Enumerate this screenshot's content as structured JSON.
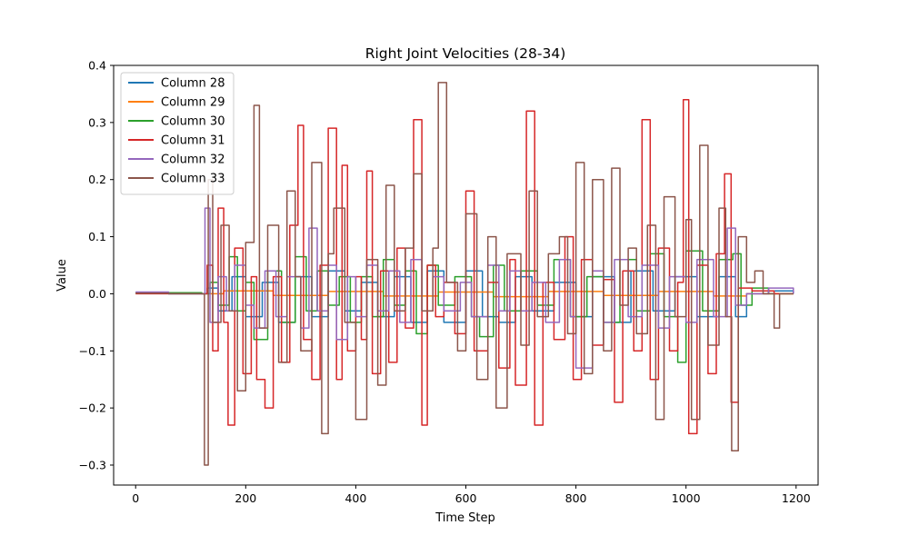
{
  "chart_data": {
    "type": "line",
    "title": "Right Joint Velocities (28-34)",
    "xlabel": "Time Step",
    "ylabel": "Value",
    "xlim": [
      -40,
      1240
    ],
    "ylim": [
      -0.335,
      0.4
    ],
    "xticks": [
      0,
      200,
      400,
      600,
      800,
      1000,
      1200
    ],
    "yticks": [
      -0.3,
      -0.2,
      -0.1,
      0.0,
      0.1,
      0.2,
      0.3,
      0.4
    ],
    "xtick_labels": [
      "0",
      "200",
      "400",
      "600",
      "800",
      "1000",
      "1200"
    ],
    "ytick_labels": [
      "−0.3",
      "−0.2",
      "−0.1",
      "0.0",
      "0.1",
      "0.2",
      "0.3",
      "0.4"
    ],
    "legend_position": "upper-left",
    "grid": false,
    "series": [
      {
        "name": "Column 28",
        "color": "#1f77b4",
        "points": [
          [
            0,
            0.002
          ],
          [
            60,
            0.0
          ],
          [
            120,
            0.0
          ],
          [
            130,
            0.01
          ],
          [
            150,
            -0.03
          ],
          [
            175,
            0.03
          ],
          [
            200,
            -0.04
          ],
          [
            230,
            0.02
          ],
          [
            260,
            -0.05
          ],
          [
            290,
            0.03
          ],
          [
            320,
            -0.04
          ],
          [
            350,
            0.04
          ],
          [
            380,
            -0.03
          ],
          [
            410,
            0.02
          ],
          [
            440,
            -0.04
          ],
          [
            470,
            0.03
          ],
          [
            500,
            -0.05
          ],
          [
            530,
            0.04
          ],
          [
            560,
            -0.05
          ],
          [
            600,
            0.04
          ],
          [
            630,
            -0.04
          ],
          [
            660,
            -0.05
          ],
          [
            690,
            0.03
          ],
          [
            720,
            -0.03
          ],
          [
            760,
            0.02
          ],
          [
            800,
            -0.04
          ],
          [
            830,
            0.03
          ],
          [
            870,
            -0.05
          ],
          [
            900,
            0.04
          ],
          [
            940,
            -0.03
          ],
          [
            980,
            0.03
          ],
          [
            1020,
            -0.04
          ],
          [
            1060,
            0.03
          ],
          [
            1090,
            -0.04
          ],
          [
            1110,
            0.0
          ],
          [
            1150,
            0.005
          ],
          [
            1195,
            0.0
          ]
        ]
      },
      {
        "name": "Column 29",
        "color": "#ff7f0e",
        "points": [
          [
            0,
            0.001
          ],
          [
            120,
            0.0
          ],
          [
            160,
            0.005
          ],
          [
            250,
            -0.003
          ],
          [
            350,
            0.004
          ],
          [
            450,
            -0.004
          ],
          [
            550,
            0.003
          ],
          [
            650,
            -0.005
          ],
          [
            750,
            0.004
          ],
          [
            850,
            -0.003
          ],
          [
            950,
            0.004
          ],
          [
            1050,
            -0.004
          ],
          [
            1110,
            0.0
          ],
          [
            1195,
            0.0
          ]
        ]
      },
      {
        "name": "Column 30",
        "color": "#2ca02c",
        "points": [
          [
            0,
            0.002
          ],
          [
            120,
            0.0
          ],
          [
            135,
            0.02
          ],
          [
            150,
            -0.02
          ],
          [
            170,
            0.065
          ],
          [
            185,
            -0.03
          ],
          [
            200,
            0.02
          ],
          [
            215,
            -0.08
          ],
          [
            240,
            0.04
          ],
          [
            265,
            -0.05
          ],
          [
            290,
            0.065
          ],
          [
            310,
            -0.03
          ],
          [
            330,
            0.04
          ],
          [
            350,
            -0.02
          ],
          [
            370,
            0.03
          ],
          [
            390,
            -0.05
          ],
          [
            410,
            0.03
          ],
          [
            430,
            -0.04
          ],
          [
            450,
            0.06
          ],
          [
            470,
            -0.02
          ],
          [
            490,
            0.04
          ],
          [
            510,
            -0.07
          ],
          [
            530,
            0.05
          ],
          [
            550,
            -0.02
          ],
          [
            580,
            0.03
          ],
          [
            610,
            -0.04
          ],
          [
            625,
            -0.075
          ],
          [
            650,
            0.05
          ],
          [
            670,
            -0.03
          ],
          [
            700,
            0.04
          ],
          [
            730,
            -0.02
          ],
          [
            760,
            0.06
          ],
          [
            790,
            -0.04
          ],
          [
            820,
            0.03
          ],
          [
            850,
            -0.05
          ],
          [
            880,
            0.06
          ],
          [
            910,
            -0.03
          ],
          [
            935,
            0.07
          ],
          [
            960,
            -0.04
          ],
          [
            985,
            -0.12
          ],
          [
            1000,
            0.075
          ],
          [
            1030,
            -0.03
          ],
          [
            1060,
            0.06
          ],
          [
            1085,
            0.07
          ],
          [
            1100,
            -0.02
          ],
          [
            1120,
            0.01
          ],
          [
            1150,
            0.0
          ],
          [
            1195,
            0.0
          ]
        ]
      },
      {
        "name": "Column 31",
        "color": "#d62728",
        "points": [
          [
            0,
            0.0
          ],
          [
            100,
            0.0
          ],
          [
            125,
            0.0
          ],
          [
            130,
            0.05
          ],
          [
            140,
            -0.1
          ],
          [
            150,
            0.15
          ],
          [
            160,
            -0.05
          ],
          [
            168,
            -0.23
          ],
          [
            180,
            0.08
          ],
          [
            195,
            -0.14
          ],
          [
            210,
            0.03
          ],
          [
            220,
            -0.15
          ],
          [
            235,
            -0.2
          ],
          [
            250,
            0.03
          ],
          [
            265,
            -0.12
          ],
          [
            280,
            0.12
          ],
          [
            295,
            0.295
          ],
          [
            305,
            -0.08
          ],
          [
            320,
            -0.15
          ],
          [
            335,
            0.05
          ],
          [
            350,
            0.29
          ],
          [
            365,
            -0.15
          ],
          [
            375,
            0.225
          ],
          [
            385,
            -0.1
          ],
          [
            400,
            0.03
          ],
          [
            410,
            -0.08
          ],
          [
            420,
            0.215
          ],
          [
            430,
            -0.14
          ],
          [
            445,
            0.04
          ],
          [
            460,
            -0.12
          ],
          [
            475,
            0.08
          ],
          [
            490,
            -0.06
          ],
          [
            505,
            0.305
          ],
          [
            520,
            -0.23
          ],
          [
            530,
            0.05
          ],
          [
            545,
            -0.04
          ],
          [
            560,
            0.02
          ],
          [
            580,
            -0.07
          ],
          [
            600,
            0.18
          ],
          [
            615,
            -0.1
          ],
          [
            640,
            0.02
          ],
          [
            660,
            -0.13
          ],
          [
            680,
            0.06
          ],
          [
            690,
            -0.16
          ],
          [
            710,
            0.32
          ],
          [
            725,
            -0.23
          ],
          [
            740,
            0.02
          ],
          [
            760,
            -0.08
          ],
          [
            780,
            0.1
          ],
          [
            795,
            -0.15
          ],
          [
            810,
            0.06
          ],
          [
            830,
            -0.09
          ],
          [
            850,
            0.025
          ],
          [
            870,
            -0.19
          ],
          [
            885,
            0.04
          ],
          [
            905,
            -0.1
          ],
          [
            920,
            0.305
          ],
          [
            935,
            -0.15
          ],
          [
            950,
            0.08
          ],
          [
            970,
            -0.1
          ],
          [
            985,
            0.02
          ],
          [
            995,
            0.34
          ],
          [
            1005,
            -0.245
          ],
          [
            1020,
            0.05
          ],
          [
            1040,
            -0.14
          ],
          [
            1055,
            0.07
          ],
          [
            1070,
            0.21
          ],
          [
            1082,
            -0.19
          ],
          [
            1095,
            0.01
          ],
          [
            1120,
            0.005
          ],
          [
            1160,
            0.0
          ],
          [
            1195,
            0.0
          ]
        ]
      },
      {
        "name": "Column 32",
        "color": "#9467bd",
        "points": [
          [
            0,
            0.003
          ],
          [
            60,
            0.0
          ],
          [
            120,
            0.0
          ],
          [
            126,
            0.15
          ],
          [
            135,
            -0.05
          ],
          [
            150,
            0.03
          ],
          [
            165,
            -0.03
          ],
          [
            180,
            0.05
          ],
          [
            200,
            -0.02
          ],
          [
            215,
            -0.06
          ],
          [
            235,
            0.04
          ],
          [
            255,
            -0.04
          ],
          [
            275,
            0.03
          ],
          [
            300,
            -0.06
          ],
          [
            315,
            0.115
          ],
          [
            330,
            -0.03
          ],
          [
            350,
            0.05
          ],
          [
            365,
            -0.08
          ],
          [
            385,
            0.03
          ],
          [
            400,
            -0.04
          ],
          [
            420,
            0.05
          ],
          [
            440,
            -0.03
          ],
          [
            460,
            0.04
          ],
          [
            480,
            -0.05
          ],
          [
            500,
            0.06
          ],
          [
            520,
            -0.03
          ],
          [
            540,
            0.03
          ],
          [
            560,
            -0.03
          ],
          [
            590,
            0.02
          ],
          [
            610,
            -0.04
          ],
          [
            640,
            0.05
          ],
          [
            660,
            -0.03
          ],
          [
            680,
            0.04
          ],
          [
            700,
            -0.03
          ],
          [
            720,
            0.02
          ],
          [
            745,
            -0.05
          ],
          [
            770,
            0.06
          ],
          [
            790,
            -0.04
          ],
          [
            800,
            -0.13
          ],
          [
            830,
            0.04
          ],
          [
            850,
            -0.05
          ],
          [
            870,
            0.06
          ],
          [
            895,
            -0.04
          ],
          [
            920,
            0.05
          ],
          [
            950,
            -0.06
          ],
          [
            970,
            0.03
          ],
          [
            1000,
            -0.05
          ],
          [
            1020,
            0.06
          ],
          [
            1050,
            -0.04
          ],
          [
            1075,
            0.115
          ],
          [
            1090,
            -0.02
          ],
          [
            1110,
            0.0
          ],
          [
            1150,
            0.01
          ],
          [
            1195,
            0.0
          ]
        ]
      },
      {
        "name": "Column 33",
        "color": "#8c564b",
        "points": [
          [
            0,
            0.001
          ],
          [
            60,
            0.0
          ],
          [
            120,
            0.0
          ],
          [
            125,
            -0.3
          ],
          [
            132,
            0.2
          ],
          [
            140,
            -0.05
          ],
          [
            155,
            0.12
          ],
          [
            170,
            -0.03
          ],
          [
            185,
            -0.17
          ],
          [
            200,
            0.09
          ],
          [
            215,
            0.33
          ],
          [
            225,
            -0.06
          ],
          [
            240,
            0.12
          ],
          [
            260,
            -0.12
          ],
          [
            275,
            0.18
          ],
          [
            290,
            0.03
          ],
          [
            300,
            -0.1
          ],
          [
            320,
            0.23
          ],
          [
            338,
            -0.245
          ],
          [
            350,
            0.07
          ],
          [
            360,
            0.15
          ],
          [
            380,
            -0.05
          ],
          [
            400,
            -0.22
          ],
          [
            420,
            0.06
          ],
          [
            440,
            -0.16
          ],
          [
            455,
            0.19
          ],
          [
            470,
            -0.03
          ],
          [
            490,
            0.08
          ],
          [
            505,
            0.21
          ],
          [
            520,
            -0.03
          ],
          [
            540,
            0.08
          ],
          [
            550,
            0.37
          ],
          [
            565,
            0.02
          ],
          [
            585,
            -0.1
          ],
          [
            600,
            0.14
          ],
          [
            620,
            -0.15
          ],
          [
            640,
            0.1
          ],
          [
            655,
            -0.2
          ],
          [
            675,
            0.07
          ],
          [
            700,
            -0.09
          ],
          [
            715,
            0.18
          ],
          [
            730,
            -0.04
          ],
          [
            750,
            0.07
          ],
          [
            770,
            0.1
          ],
          [
            785,
            -0.07
          ],
          [
            800,
            0.23
          ],
          [
            815,
            -0.14
          ],
          [
            830,
            0.2
          ],
          [
            850,
            -0.1
          ],
          [
            865,
            0.22
          ],
          [
            880,
            -0.02
          ],
          [
            895,
            0.08
          ],
          [
            910,
            -0.07
          ],
          [
            930,
            0.12
          ],
          [
            945,
            -0.22
          ],
          [
            960,
            0.17
          ],
          [
            980,
            -0.04
          ],
          [
            1000,
            0.13
          ],
          [
            1010,
            -0.22
          ],
          [
            1025,
            0.26
          ],
          [
            1040,
            -0.09
          ],
          [
            1060,
            0.15
          ],
          [
            1072,
            -0.04
          ],
          [
            1083,
            -0.275
          ],
          [
            1095,
            0.1
          ],
          [
            1110,
            0.02
          ],
          [
            1125,
            0.04
          ],
          [
            1140,
            0.0
          ],
          [
            1160,
            -0.06
          ],
          [
            1170,
            0.0
          ],
          [
            1195,
            0.0
          ]
        ]
      }
    ]
  }
}
